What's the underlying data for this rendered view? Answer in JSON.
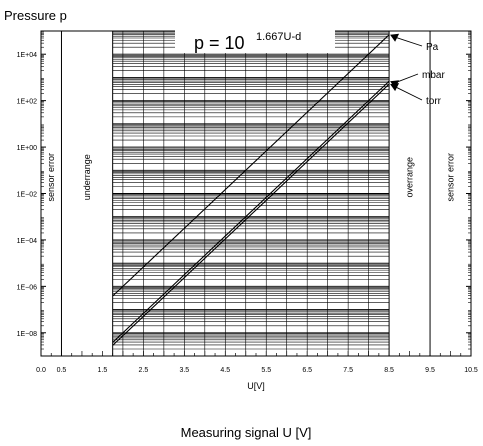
{
  "chart_data": {
    "type": "line",
    "title": "Pressure p",
    "formula": {
      "base": "p = 10",
      "exponent": "1.667U-d"
    },
    "xlabel": "U[V]",
    "caption": "Measuring signal U [V]",
    "xlim": [
      0,
      10.5
    ],
    "ylim_log10": [
      -9,
      5
    ],
    "yscale": "log",
    "x_tick_labels": [
      "0.0",
      "0.5",
      "1.5",
      "2.5",
      "3.5",
      "4.5",
      "5.5",
      "6.5",
      "7.5",
      "8.5",
      "9.5",
      "10.5"
    ],
    "x_ticks": [
      0,
      0.5,
      1.5,
      2.5,
      3.5,
      4.5,
      5.5,
      6.5,
      7.5,
      8.5,
      9.5,
      10.5
    ],
    "y_tick_labels": [
      "1E+04",
      "1E+02",
      "1E+00",
      "1E−02",
      "1E−04",
      "1E−06",
      "1E−08"
    ],
    "y_ticks_log10": [
      4,
      2,
      0,
      -2,
      -4,
      -6,
      -8
    ],
    "series": [
      {
        "name": "Pa",
        "d": 9.333,
        "x": [
          1.75,
          8.5
        ],
        "y_log10": [
          -6.416,
          4.837
        ]
      },
      {
        "name": "mbar",
        "d": 11.333,
        "x": [
          1.75,
          8.5
        ],
        "y_log10": [
          -8.416,
          2.837
        ]
      },
      {
        "name": "torr",
        "d": 11.46,
        "x": [
          1.75,
          8.5
        ],
        "y_log10": [
          -8.543,
          2.71
        ]
      }
    ],
    "regions": [
      {
        "label": "sensor error",
        "x": [
          0,
          0.5
        ]
      },
      {
        "label": "underrange",
        "x": [
          0.5,
          1.75
        ]
      },
      {
        "label": "overrange",
        "x": [
          8.5,
          9.5
        ]
      },
      {
        "label": "sensor error",
        "x": [
          9.5,
          10.5
        ]
      }
    ],
    "grid": true
  }
}
